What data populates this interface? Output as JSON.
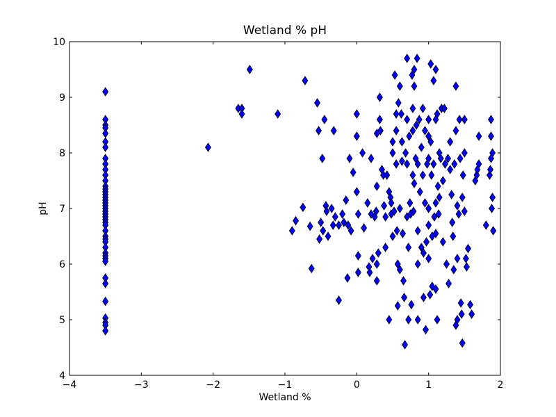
{
  "chart_data": {
    "type": "scatter",
    "title": "Wetland % pH",
    "xlabel": "Wetland %",
    "ylabel": "pH",
    "xlim": [
      -4,
      2
    ],
    "ylim": [
      4,
      10
    ],
    "xticks": [
      -4,
      -3,
      -2,
      -1,
      0,
      1,
      2
    ],
    "yticks": [
      4,
      5,
      6,
      7,
      8,
      9,
      10
    ],
    "xtick_labels": [
      "−4",
      "−3",
      "−2",
      "−1",
      "0",
      "1",
      "2"
    ],
    "ytick_labels": [
      "4",
      "5",
      "6",
      "7",
      "8",
      "9",
      "10"
    ],
    "grid": false,
    "legend": "none",
    "marker": "thin-diamond",
    "marker_color": "#0000ff",
    "marker_edge_color": "#000000",
    "points": [
      [
        -3.5,
        9.1
      ],
      [
        -3.5,
        8.6
      ],
      [
        -3.5,
        8.5
      ],
      [
        -3.5,
        8.45
      ],
      [
        -3.5,
        8.35
      ],
      [
        -3.5,
        8.2
      ],
      [
        -3.5,
        8.1
      ],
      [
        -3.5,
        7.9
      ],
      [
        -3.5,
        7.8
      ],
      [
        -3.5,
        7.7
      ],
      [
        -3.5,
        7.6
      ],
      [
        -3.5,
        7.5
      ],
      [
        -3.5,
        7.4
      ],
      [
        -3.5,
        7.35
      ],
      [
        -3.5,
        7.3
      ],
      [
        -3.5,
        7.25
      ],
      [
        -3.5,
        7.2
      ],
      [
        -3.5,
        7.15
      ],
      [
        -3.5,
        7.1
      ],
      [
        -3.5,
        7.05
      ],
      [
        -3.5,
        7.0
      ],
      [
        -3.5,
        6.95
      ],
      [
        -3.5,
        6.9
      ],
      [
        -3.5,
        6.85
      ],
      [
        -3.5,
        6.8
      ],
      [
        -3.5,
        6.75
      ],
      [
        -3.5,
        6.7
      ],
      [
        -3.5,
        6.6
      ],
      [
        -3.5,
        6.5
      ],
      [
        -3.5,
        6.45
      ],
      [
        -3.5,
        6.4
      ],
      [
        -3.5,
        6.3
      ],
      [
        -3.5,
        6.2
      ],
      [
        -3.5,
        6.15
      ],
      [
        -3.5,
        6.1
      ],
      [
        -3.5,
        6.05
      ],
      [
        -3.5,
        5.75
      ],
      [
        -3.5,
        5.65
      ],
      [
        -3.5,
        5.33
      ],
      [
        -3.5,
        5.03
      ],
      [
        -3.5,
        4.95
      ],
      [
        -3.5,
        4.9
      ],
      [
        -3.5,
        4.8
      ],
      [
        -2.07,
        8.1
      ],
      [
        -1.65,
        8.8
      ],
      [
        -1.6,
        8.8
      ],
      [
        -1.6,
        8.7
      ],
      [
        -1.49,
        9.5
      ],
      [
        -1.1,
        8.7
      ],
      [
        -0.9,
        6.6
      ],
      [
        -0.85,
        6.78
      ],
      [
        -0.75,
        7.02
      ],
      [
        -0.72,
        9.3
      ],
      [
        -0.65,
        6.68
      ],
      [
        -0.63,
        5.92
      ],
      [
        -0.55,
        8.9
      ],
      [
        -0.53,
        8.4
      ],
      [
        -0.52,
        6.45
      ],
      [
        -0.5,
        6.75
      ],
      [
        -0.48,
        7.9
      ],
      [
        -0.47,
        6.6
      ],
      [
        -0.45,
        8.6
      ],
      [
        -0.43,
        7.05
      ],
      [
        -0.42,
        6.95
      ],
      [
        -0.4,
        6.5
      ],
      [
        -0.35,
        7.0
      ],
      [
        -0.33,
        6.7
      ],
      [
        -0.32,
        8.4
      ],
      [
        -0.3,
        6.85
      ],
      [
        -0.25,
        5.35
      ],
      [
        -0.25,
        6.7
      ],
      [
        -0.2,
        6.9
      ],
      [
        -0.18,
        6.75
      ],
      [
        -0.15,
        7.15
      ],
      [
        -0.12,
        6.7
      ],
      [
        -0.13,
        5.75
      ],
      [
        -0.1,
        7.9
      ],
      [
        -0.08,
        6.6
      ],
      [
        -0.05,
        7.65
      ],
      [
        0.0,
        8.7
      ],
      [
        0.0,
        8.3
      ],
      [
        0.0,
        7.3
      ],
      [
        0.02,
        6.9
      ],
      [
        0.02,
        6.15
      ],
      [
        0.02,
        5.85
      ],
      [
        0.08,
        8.0
      ],
      [
        0.1,
        6.65
      ],
      [
        0.15,
        7.1
      ],
      [
        0.17,
        5.95
      ],
      [
        0.18,
        5.85
      ],
      [
        0.2,
        7.9
      ],
      [
        0.2,
        6.9
      ],
      [
        0.22,
        6.1
      ],
      [
        0.25,
        6.85
      ],
      [
        0.27,
        6.95
      ],
      [
        0.28,
        8.35
      ],
      [
        0.28,
        7.4
      ],
      [
        0.28,
        6.0
      ],
      [
        0.28,
        5.7
      ],
      [
        0.3,
        6.2
      ],
      [
        0.32,
        9.0
      ],
      [
        0.32,
        8.6
      ],
      [
        0.33,
        8.4
      ],
      [
        0.35,
        7.7
      ],
      [
        0.37,
        7.6
      ],
      [
        0.38,
        7.05
      ],
      [
        0.4,
        6.85
      ],
      [
        0.4,
        6.3
      ],
      [
        0.42,
        7.6
      ],
      [
        0.45,
        7.3
      ],
      [
        0.45,
        5.0
      ],
      [
        0.47,
        7.2
      ],
      [
        0.48,
        7.1
      ],
      [
        0.48,
        6.9
      ],
      [
        0.5,
        8.0
      ],
      [
        0.5,
        6.5
      ],
      [
        0.5,
        8.2
      ],
      [
        0.52,
        6.95
      ],
      [
        0.53,
        9.4
      ],
      [
        0.55,
        8.7
      ],
      [
        0.55,
        8.4
      ],
      [
        0.55,
        7.8
      ],
      [
        0.56,
        6.6
      ],
      [
        0.57,
        6.0
      ],
      [
        0.57,
        5.25
      ],
      [
        0.58,
        8.9
      ],
      [
        0.6,
        9.2
      ],
      [
        0.6,
        7.0
      ],
      [
        0.6,
        5.9
      ],
      [
        0.62,
        8.7
      ],
      [
        0.63,
        8.2
      ],
      [
        0.63,
        7.85
      ],
      [
        0.64,
        6.55
      ],
      [
        0.65,
        5.7
      ],
      [
        0.66,
        5.4
      ],
      [
        0.67,
        4.55
      ],
      [
        0.68,
        8.0
      ],
      [
        0.7,
        9.7
      ],
      [
        0.7,
        8.6
      ],
      [
        0.7,
        7.8
      ],
      [
        0.7,
        6.85
      ],
      [
        0.72,
        6.3
      ],
      [
        0.72,
        5.0
      ],
      [
        0.73,
        8.3
      ],
      [
        0.74,
        7.1
      ],
      [
        0.75,
        6.9
      ],
      [
        0.76,
        5.27
      ],
      [
        0.77,
        9.4
      ],
      [
        0.78,
        8.8
      ],
      [
        0.78,
        8.4
      ],
      [
        0.78,
        7.6
      ],
      [
        0.79,
        6.95
      ],
      [
        0.8,
        9.5
      ],
      [
        0.8,
        9.2
      ],
      [
        0.8,
        7.45
      ],
      [
        0.82,
        7.9
      ],
      [
        0.83,
        8.5
      ],
      [
        0.84,
        9.7
      ],
      [
        0.85,
        7.8
      ],
      [
        0.85,
        6.6
      ],
      [
        0.85,
        6.0
      ],
      [
        0.85,
        5.0
      ],
      [
        0.87,
        8.6
      ],
      [
        0.88,
        7.3
      ],
      [
        0.9,
        8.1
      ],
      [
        0.9,
        6.3
      ],
      [
        0.92,
        8.8
      ],
      [
        0.92,
        7.6
      ],
      [
        0.93,
        6.2
      ],
      [
        0.93,
        5.4
      ],
      [
        0.95,
        8.4
      ],
      [
        0.95,
        7.1
      ],
      [
        0.96,
        4.82
      ],
      [
        0.97,
        6.4
      ],
      [
        0.98,
        7.8
      ],
      [
        1.0,
        8.6
      ],
      [
        1.0,
        8.3
      ],
      [
        1.0,
        7.9
      ],
      [
        1.0,
        7.0
      ],
      [
        1.0,
        6.7
      ],
      [
        1.0,
        6.1
      ],
      [
        1.02,
        5.45
      ],
      [
        1.03,
        9.6
      ],
      [
        1.03,
        8.2
      ],
      [
        1.04,
        7.6
      ],
      [
        1.05,
        6.5
      ],
      [
        1.05,
        5.6
      ],
      [
        1.07,
        9.3
      ],
      [
        1.07,
        7.8
      ],
      [
        1.08,
        6.85
      ],
      [
        1.1,
        9.5
      ],
      [
        1.1,
        8.6
      ],
      [
        1.1,
        7.1
      ],
      [
        1.1,
        6.55
      ],
      [
        1.1,
        5.55
      ],
      [
        1.12,
        8.7
      ],
      [
        1.12,
        5.0
      ],
      [
        1.13,
        7.4
      ],
      [
        1.14,
        6.9
      ],
      [
        1.15,
        8.0
      ],
      [
        1.15,
        7.2
      ],
      [
        1.17,
        7.9
      ],
      [
        1.18,
        8.8
      ],
      [
        1.2,
        7.5
      ],
      [
        1.2,
        6.4
      ],
      [
        1.22,
        8.8
      ],
      [
        1.23,
        7.8
      ],
      [
        1.25,
        6.0
      ],
      [
        1.27,
        7.9
      ],
      [
        1.28,
        5.65
      ],
      [
        1.3,
        8.2
      ],
      [
        1.3,
        7.7
      ],
      [
        1.32,
        7.25
      ],
      [
        1.33,
        6.75
      ],
      [
        1.34,
        6.5
      ],
      [
        1.35,
        5.9
      ],
      [
        1.36,
        7.8
      ],
      [
        1.38,
        9.2
      ],
      [
        1.38,
        8.4
      ],
      [
        1.38,
        4.9
      ],
      [
        1.4,
        7.05
      ],
      [
        1.4,
        6.1
      ],
      [
        1.4,
        5.0
      ],
      [
        1.42,
        6.9
      ],
      [
        1.43,
        8.6
      ],
      [
        1.44,
        7.9
      ],
      [
        1.45,
        5.3
      ],
      [
        1.46,
        5.1
      ],
      [
        1.47,
        4.58
      ],
      [
        1.47,
        7.2
      ],
      [
        1.48,
        7.6
      ],
      [
        1.5,
        8.0
      ],
      [
        1.5,
        6.95
      ],
      [
        1.5,
        8.6
      ],
      [
        1.52,
        6.1
      ],
      [
        1.53,
        5.95
      ],
      [
        1.55,
        6.28
      ],
      [
        1.58,
        5.27
      ],
      [
        1.6,
        5.1
      ],
      [
        1.65,
        7.5
      ],
      [
        1.67,
        7.6
      ],
      [
        1.68,
        7.7
      ],
      [
        1.7,
        7.8
      ],
      [
        1.7,
        8.3
      ],
      [
        1.8,
        6.7
      ],
      [
        1.85,
        7.6
      ],
      [
        1.86,
        7.7
      ],
      [
        1.87,
        8.6
      ],
      [
        1.87,
        8.3
      ],
      [
        1.87,
        7.9
      ],
      [
        1.88,
        7.0
      ],
      [
        1.89,
        7.2
      ],
      [
        1.89,
        8.0
      ],
      [
        1.9,
        6.6
      ]
    ]
  }
}
